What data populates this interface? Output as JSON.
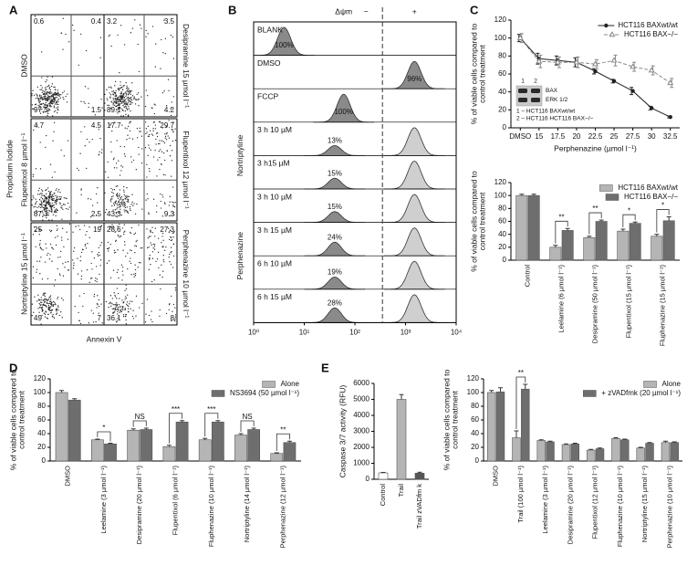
{
  "chart_data": [
    {
      "type": "flow_cytometry",
      "label": "A",
      "ylabel": "Propidium Iodide",
      "xlabel": "Annexin V",
      "row_labels": [
        "DMSO",
        "Flupentixol 8 µmol l⁻¹",
        "Nortriptyline 15 µmol l⁻¹"
      ],
      "col2_labels": [
        "Desipramine 15 µmol l⁻¹",
        "Flupentixol 12 µmol l⁻¹",
        "Perphenazine 10 µmol l⁻¹"
      ],
      "quadrants": [
        [
          0.6,
          0.4,
          97.5,
          1.5
        ],
        [
          3.2,
          3.5,
          89.1,
          4.2
        ],
        [
          4.7,
          4.5,
          87.3,
          2.5
        ],
        [
          17.7,
          29.7,
          43.3,
          9.3
        ],
        [
          25,
          19,
          49,
          7
        ],
        [
          28.6,
          27.3,
          36.1,
          8
        ]
      ]
    },
    {
      "type": "histogram_overlay",
      "label": "B",
      "header": "Δψm",
      "neg": "−",
      "pos": "+",
      "xlim": [
        1,
        10000
      ],
      "log": true,
      "xticks": [
        {
          "value": 1,
          "label": "10⁰"
        },
        {
          "value": 10,
          "label": "10¹"
        },
        {
          "value": 100,
          "label": "10²"
        },
        {
          "value": 1000,
          "label": "10³"
        },
        {
          "value": 10000,
          "label": "10⁴"
        }
      ],
      "dashed_x": 350,
      "rows": [
        {
          "name": "BLANK",
          "value": 100,
          "value_label": "100%",
          "peak": 4
        },
        {
          "name": "DMSO",
          "value": 96,
          "value_label": "96%",
          "peak": 1500
        },
        {
          "name": "FCCP",
          "value": 100,
          "value_label": "100%",
          "peak": 60
        }
      ],
      "groups": [
        {
          "name": "Nortriptyline",
          "rows": [
            {
              "name": "3 h 10 µM",
              "value": 13,
              "value_label": "13%",
              "peak": 40,
              "ref_peak": 1500
            },
            {
              "name": "3 h15 µM",
              "value": 15,
              "value_label": "15%",
              "peak": 40,
              "ref_peak": 1500
            }
          ]
        },
        {
          "name": "Perphenazine",
          "rows": [
            {
              "name": "3 h 10 µM",
              "value": 15,
              "value_label": "15%",
              "peak": 40,
              "ref_peak": 1500
            },
            {
              "name": "3 h 15 µM",
              "value": 24,
              "value_label": "24%",
              "peak": 40,
              "ref_peak": 1500
            },
            {
              "name": "6 h 10 µM",
              "value": 19,
              "value_label": "19%",
              "peak": 40,
              "ref_peak": 1500
            },
            {
              "name": "6 h 15 µM",
              "value": 28,
              "value_label": "28%",
              "peak": 40,
              "ref_peak": 1500
            }
          ]
        }
      ]
    },
    {
      "type": "line",
      "label": "C",
      "categories": [
        "DMSO",
        "15",
        "17.5",
        "20",
        "22.5",
        "25",
        "27.5",
        "30",
        "32.5"
      ],
      "xlabel": "Perphenazine (µmol l⁻¹)",
      "ylabel": [
        "% of viable cells compared to",
        "control treatment"
      ],
      "ylim": [
        0,
        120
      ],
      "yticks": [
        0,
        20,
        40,
        60,
        80,
        100,
        120
      ],
      "legend": "upper right",
      "series": [
        {
          "name": "HCT116 BAXwt/wt",
          "color": "#222222",
          "dash": false,
          "marker": "circle",
          "values": [
            100,
            77,
            75,
            73,
            63,
            52,
            41,
            22,
            12
          ],
          "errors": [
            4,
            6,
            5,
            5,
            3,
            2,
            4,
            2,
            1
          ]
        },
        {
          "name": "HCT116 BAX−/−",
          "color": "#888888",
          "dash": true,
          "marker": "triangle",
          "values": [
            100,
            74,
            73,
            73,
            71,
            75,
            68,
            64,
            50
          ],
          "errors": [
            5,
            7,
            6,
            6,
            5,
            6,
            5,
            5,
            5
          ]
        }
      ],
      "inset": {
        "lanes": [
          "1",
          "2"
        ],
        "bands": [
          "BAX",
          "ERK 1/2"
        ],
        "key": [
          "1 – HCT116 BAXwt/wt",
          "2 – HCT116 HCT116 BAX−/−"
        ]
      }
    },
    {
      "type": "bar",
      "categories": [
        "Control",
        "Leelamine (6 µmol l⁻¹)",
        "Desipramine (50 µmol l⁻¹)",
        "Flupentixol (15 µmol l⁻¹)",
        "Fluphenazine (15 µmol l⁻¹)"
      ],
      "ylabel": [
        "% of viable cells compared to",
        "control treatment"
      ],
      "ylim": [
        0,
        120
      ],
      "yticks": [
        0,
        20,
        40,
        60,
        80,
        100,
        120
      ],
      "legend": "upper right",
      "series": [
        {
          "name": "HCT116 BAXwt/wt",
          "color": "#b5b5b5",
          "values": [
            100,
            20,
            35,
            45,
            37
          ],
          "errors": [
            2,
            3,
            2,
            3,
            3
          ]
        },
        {
          "name": "HCT116 BAX−/−",
          "color": "#6e6e6e",
          "values": [
            100,
            46,
            60,
            57,
            61
          ],
          "errors": [
            2,
            3,
            2,
            2,
            6
          ]
        }
      ],
      "significance": [
        null,
        "**",
        "**",
        "*",
        "*"
      ]
    },
    {
      "type": "bar",
      "label": "D",
      "categories": [
        "DMSO",
        "Leelamine (3 µmol l⁻¹)",
        "Desipramine (20 µmol l⁻¹)",
        "Flupentixol (6 µmol l⁻¹)",
        "Fluphenazine (10 µmol l⁻¹)",
        "Nortriptyline (14 µmol l⁻¹)",
        "Perphenazine (12 µmol l⁻¹)"
      ],
      "ylabel": [
        "% of viable cells compared to",
        "control treatment"
      ],
      "ylim": [
        0,
        120
      ],
      "yticks": [
        0,
        20,
        40,
        60,
        80,
        100,
        120
      ],
      "legend": "upper right",
      "series": [
        {
          "name": "Alone",
          "color": "#b5b5b5",
          "values": [
            100,
            31,
            45,
            21,
            31,
            38,
            11
          ],
          "errors": [
            3,
            1,
            2,
            2,
            2,
            2,
            1
          ]
        },
        {
          "name": "NS3694 (50 µmol l⁻¹)",
          "color": "#6e6e6e",
          "values": [
            89,
            25,
            46,
            57,
            57,
            46,
            27
          ],
          "errors": [
            2,
            1,
            2,
            2,
            2,
            2,
            2
          ]
        }
      ],
      "significance": [
        null,
        "*",
        "NS",
        "***",
        "***",
        "NS",
        "**"
      ]
    },
    {
      "type": "bar",
      "label": "E",
      "categories": [
        "Control",
        "Trail",
        "Trail zVADfm k"
      ],
      "ylabel": [
        "Caspase 3/7 activity (RFU)"
      ],
      "ylim": [
        0,
        6000
      ],
      "yticks": [
        0,
        1000,
        2000,
        3000,
        4000,
        5000,
        6000
      ],
      "values": [
        400,
        5000,
        380
      ],
      "errors": [
        30,
        300,
        60
      ],
      "colors": [
        "#ffffff",
        "#b5b5b5",
        "#555555"
      ]
    },
    {
      "type": "bar",
      "categories": [
        "DMSO",
        "Trail (100 µmol l⁻¹)",
        "Leelamine (3 µmol l⁻¹)",
        "Desipramine (20 µmol l⁻¹)",
        "Flupentixol (12 µmol l⁻¹)",
        "Fluphenazine (10 µmol l⁻¹)",
        "Nortriptyline (15 µmol l⁻¹)",
        "Perphenazine (10 µmol l⁻¹)"
      ],
      "ylabel": [
        "% of viable cells compared to",
        "control treatment"
      ],
      "ylim": [
        0,
        120
      ],
      "yticks": [
        0,
        20,
        40,
        60,
        80,
        100,
        120
      ],
      "legend": "upper right",
      "series": [
        {
          "name": "Alone",
          "color": "#b5b5b5",
          "values": [
            100,
            34,
            30,
            24,
            16,
            33,
            19,
            27
          ],
          "errors": [
            3,
            10,
            1,
            1,
            1,
            1,
            1,
            2
          ]
        },
        {
          "name": "+ zVADfmk (20 µmol l⁻¹)",
          "color": "#6e6e6e",
          "values": [
            101,
            105,
            28,
            25,
            18,
            31,
            26,
            27
          ],
          "errors": [
            6,
            7,
            1,
            1,
            1,
            1,
            1,
            1
          ]
        }
      ],
      "significance": [
        null,
        "**",
        null,
        null,
        null,
        null,
        null,
        null
      ]
    }
  ]
}
